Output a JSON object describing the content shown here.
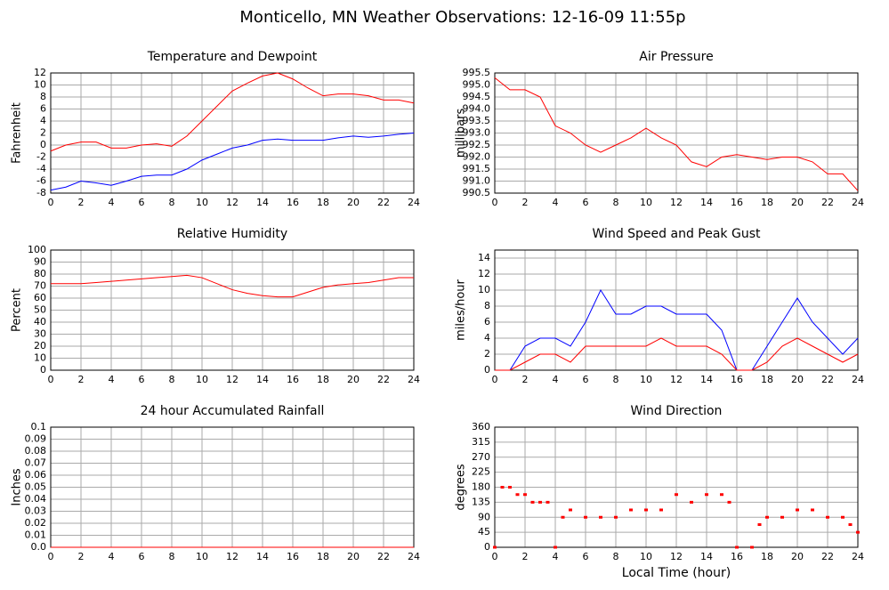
{
  "title": "Monticello, MN Weather Observations: 12-16-09 11:55p",
  "chart_data": [
    {
      "type": "line",
      "title": "Temperature and Dewpoint",
      "ylabel": "Fahrenheit",
      "x": [
        0,
        1,
        2,
        3,
        4,
        5,
        6,
        7,
        8,
        9,
        10,
        11,
        12,
        13,
        14,
        15,
        16,
        17,
        18,
        19,
        20,
        21,
        22,
        23,
        24
      ],
      "series": [
        {
          "color": "#ff0000",
          "values": [
            -1,
            0,
            0.5,
            0.5,
            -0.5,
            -0.5,
            0,
            0.2,
            -0.2,
            1.5,
            4,
            6.5,
            9,
            10.3,
            11.5,
            12,
            11,
            9.5,
            8.2,
            8.5,
            8.5,
            8.2,
            7.5,
            7.5,
            7
          ]
        },
        {
          "color": "#0000ff",
          "values": [
            -7.5,
            -7,
            -6,
            -6.3,
            -6.7,
            -6,
            -5.2,
            -5,
            -5,
            -4,
            -2.5,
            -1.5,
            -0.5,
            0,
            0.8,
            1,
            0.8,
            0.8,
            0.8,
            1.2,
            1.5,
            1.3,
            1.5,
            1.8,
            2
          ]
        }
      ],
      "xlim": [
        0,
        24
      ],
      "xticks": [
        0,
        2,
        4,
        6,
        8,
        10,
        12,
        14,
        16,
        18,
        20,
        22,
        24
      ],
      "ylim": [
        -8,
        12
      ],
      "yticks": [
        -8,
        -6,
        -4,
        -2,
        0,
        2,
        4,
        6,
        8,
        10,
        12
      ],
      "grid": true
    },
    {
      "type": "line",
      "title": "Air Pressure",
      "ylabel": "millibars",
      "x": [
        0,
        1,
        2,
        3,
        4,
        5,
        6,
        7,
        8,
        9,
        10,
        11,
        12,
        13,
        14,
        15,
        16,
        17,
        18,
        19,
        20,
        21,
        22,
        23,
        24
      ],
      "series": [
        {
          "color": "#ff0000",
          "values": [
            995.3,
            994.8,
            994.8,
            994.5,
            993.3,
            993.0,
            992.5,
            992.2,
            992.5,
            992.8,
            993.2,
            992.8,
            992.5,
            991.8,
            991.6,
            992.0,
            992.1,
            992.0,
            991.9,
            992.0,
            992.0,
            991.8,
            991.3,
            991.3,
            990.6
          ]
        }
      ],
      "xlim": [
        0,
        24
      ],
      "xticks": [
        0,
        2,
        4,
        6,
        8,
        10,
        12,
        14,
        16,
        18,
        20,
        22,
        24
      ],
      "ylim": [
        990.5,
        995.5
      ],
      "yticks": [
        990.5,
        {
          "value": 991,
          "label": "991.0"
        },
        991.5,
        {
          "value": 992,
          "label": "992.0"
        },
        992.5,
        {
          "value": 993,
          "label": "993.0"
        },
        993.5,
        {
          "value": 994,
          "label": "994.0"
        },
        994.5,
        {
          "value": 995,
          "label": "995.0"
        },
        995.5
      ],
      "grid": true
    },
    {
      "type": "line",
      "title": "Relative Humidity",
      "ylabel": "Percent",
      "x": [
        0,
        1,
        2,
        3,
        4,
        5,
        6,
        7,
        8,
        9,
        10,
        11,
        12,
        13,
        14,
        15,
        16,
        17,
        18,
        19,
        20,
        21,
        22,
        23,
        24
      ],
      "series": [
        {
          "color": "#ff0000",
          "values": [
            72,
            72,
            72,
            73,
            74,
            75,
            76,
            77,
            78,
            79,
            77,
            72,
            67,
            64,
            62,
            61,
            61,
            65,
            69,
            71,
            72,
            73,
            75,
            77,
            77
          ]
        }
      ],
      "xlim": [
        0,
        24
      ],
      "xticks": [
        0,
        2,
        4,
        6,
        8,
        10,
        12,
        14,
        16,
        18,
        20,
        22,
        24
      ],
      "ylim": [
        0,
        100
      ],
      "yticks": [
        0,
        10,
        20,
        30,
        40,
        50,
        60,
        70,
        80,
        90,
        100
      ],
      "grid": true
    },
    {
      "type": "line",
      "title": "Wind Speed and Peak Gust",
      "ylabel": "miles/hour",
      "x": [
        0,
        1,
        2,
        3,
        4,
        5,
        6,
        7,
        8,
        9,
        10,
        11,
        12,
        13,
        14,
        15,
        16,
        17,
        18,
        19,
        20,
        21,
        22,
        23,
        24
      ],
      "series": [
        {
          "color": "#0000ff",
          "values": [
            0,
            0,
            3,
            4,
            4,
            3,
            6,
            10,
            7,
            7,
            8,
            8,
            7,
            7,
            7,
            5,
            0,
            0,
            3,
            6,
            9,
            6,
            4,
            2,
            4
          ]
        },
        {
          "color": "#ff0000",
          "values": [
            0,
            0,
            1,
            2,
            2,
            1,
            3,
            3,
            3,
            3,
            3,
            4,
            3,
            3,
            3,
            2,
            0,
            0,
            1,
            3,
            4,
            3,
            2,
            1,
            2
          ]
        }
      ],
      "xlim": [
        0,
        24
      ],
      "xticks": [
        0,
        2,
        4,
        6,
        8,
        10,
        12,
        14,
        16,
        18,
        20,
        22,
        24
      ],
      "ylim": [
        0,
        15
      ],
      "yticks": [
        0,
        2,
        4,
        6,
        8,
        10,
        12,
        14
      ],
      "grid": true
    },
    {
      "type": "line",
      "title": "24 hour Accumulated Rainfall",
      "ylabel": "Inches",
      "x": [
        0,
        24
      ],
      "series": [
        {
          "color": "#ff0000",
          "values": [
            0,
            0
          ]
        }
      ],
      "xlim": [
        0,
        24
      ],
      "xticks": [
        0,
        2,
        4,
        6,
        8,
        10,
        12,
        14,
        16,
        18,
        20,
        22,
        24
      ],
      "ylim": [
        0,
        0.1
      ],
      "yticks": [
        {
          "value": 0,
          "label": "0.0"
        },
        0.01,
        0.02,
        0.03,
        0.04,
        0.05,
        0.06,
        0.07,
        0.08,
        0.09,
        0.1
      ],
      "grid": true
    },
    {
      "type": "scatter",
      "title": "Wind Direction",
      "ylabel": "degrees",
      "xlabel": "Local Time (hour)",
      "x": [
        0,
        0.5,
        1,
        1.5,
        2,
        2.5,
        3,
        3.5,
        4,
        4.5,
        5,
        6,
        7,
        8,
        9,
        10,
        11,
        12,
        13,
        14,
        15,
        15.5,
        16,
        17,
        17.5,
        18,
        19,
        20,
        21,
        22,
        23,
        23.5,
        24
      ],
      "series": [
        {
          "color": "#ff0000",
          "values": [
            0,
            180,
            180,
            158,
            158,
            135,
            135,
            135,
            0,
            90,
            112,
            90,
            90,
            90,
            112,
            112,
            112,
            158,
            135,
            158,
            158,
            135,
            0,
            0,
            68,
            90,
            90,
            112,
            112,
            90,
            90,
            68,
            45
          ]
        }
      ],
      "xlim": [
        0,
        24
      ],
      "xticks": [
        0,
        2,
        4,
        6,
        8,
        10,
        12,
        14,
        16,
        18,
        20,
        22,
        24
      ],
      "ylim": [
        0,
        360
      ],
      "yticks": [
        0,
        45,
        90,
        135,
        180,
        225,
        270,
        315,
        360
      ],
      "grid": true
    }
  ]
}
